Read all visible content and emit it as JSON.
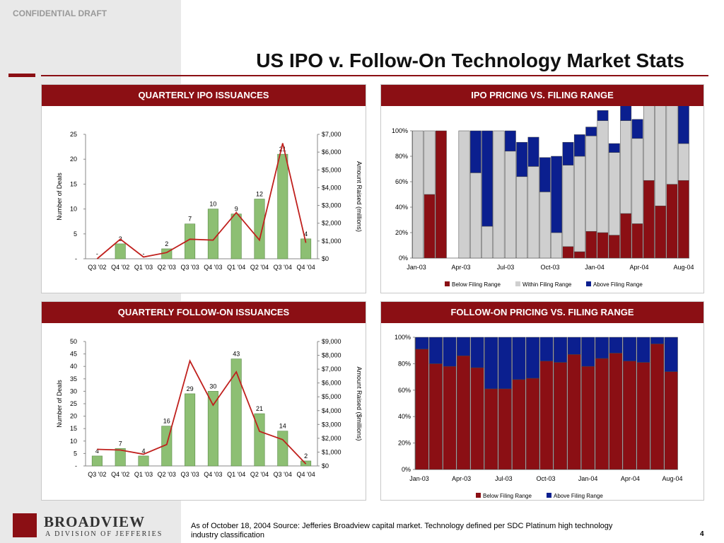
{
  "confidential": "CONFIDENTIAL DRAFT",
  "page_title": "US IPO v. Follow-On Technology Market Stats",
  "footer": {
    "note": "As of October 18, 2004 Source: Jefferies Broadview capital market. Technology defined per SDC Platinum high technology industry classification",
    "page_number": "4"
  },
  "logo": {
    "name": "BROADVIEW",
    "tagline": "A DIVISION OF JEFFERIES"
  },
  "colors": {
    "brand": "#8b0f14",
    "bar_green": "#8dbf73",
    "line_red": "#c0201d",
    "below": "#8b0f14",
    "within": "#cfcfcf",
    "above": "#0b1f8f"
  },
  "chart_data": [
    {
      "id": "ipo_issuances",
      "type": "bar",
      "title": "QUARTERLY IPO ISSUANCES",
      "categories": [
        "Q3 '02",
        "Q4 '02",
        "Q1 '03",
        "Q2 '03",
        "Q3 '03",
        "Q4 '03",
        "Q1 '04",
        "Q2 '04",
        "Q3 '04",
        "Q4 '04"
      ],
      "series": [
        {
          "values": [
            0,
            3,
            0,
            2,
            7,
            10,
            9,
            12,
            21,
            4
          ]
        },
        {
          "values": [
            0,
            1100,
            100,
            350,
            1100,
            1050,
            2600,
            1050,
            6500,
            900
          ]
        }
      ],
      "data_labels": [
        "-",
        "3",
        "-",
        "2",
        "7",
        "10",
        "9",
        "12",
        "21",
        "4"
      ],
      "ylabel": "Number of Deals",
      "ylabel2": "Amount Raised (millions)",
      "ylim": [
        0,
        25
      ],
      "y2lim": [
        0,
        7000
      ],
      "yticks": [
        "-",
        "5",
        "10",
        "15",
        "20",
        "25"
      ],
      "y2ticks": [
        "$0",
        "$1,000",
        "$2,000",
        "$3,000",
        "$4,000",
        "$5,000",
        "$6,000",
        "$7,000"
      ]
    },
    {
      "id": "ipo_pricing",
      "type": "bar",
      "title": "IPO PRICING VS. FILING RANGE",
      "x_ticks": [
        "Jan-03",
        "Apr-03",
        "Jul-03",
        "Oct-03",
        "Jan-04",
        "Apr-04",
        "Aug-04"
      ],
      "yticks": [
        "0%",
        "20%",
        "40%",
        "60%",
        "80%",
        "100%"
      ],
      "legend": [
        "Below Filing Range",
        "Within Filing Range",
        "Above Filing Range"
      ],
      "series": [
        {
          "name": "Below Filing Range",
          "values": [
            0,
            50,
            100,
            0,
            0,
            0,
            0,
            0,
            0,
            0,
            0,
            0,
            0,
            9,
            5,
            21,
            20,
            18,
            35,
            27,
            61,
            41,
            58,
            61
          ]
        },
        {
          "name": "Within Filing Range",
          "values": [
            100,
            50,
            0,
            0,
            100,
            67,
            25,
            100,
            84,
            64,
            72,
            52,
            20,
            64,
            75,
            75,
            88,
            65,
            73,
            67,
            79,
            79,
            79,
            29
          ]
        },
        {
          "name": "Above Filing Range",
          "values": [
            0,
            0,
            0,
            0,
            0,
            33,
            75,
            0,
            16,
            27,
            23,
            27,
            60,
            18,
            17,
            7,
            8,
            7,
            16,
            15,
            21,
            28,
            63,
            59
          ]
        }
      ],
      "present": [
        1,
        1,
        1,
        0,
        1,
        1,
        1,
        1,
        1,
        1,
        1,
        1,
        1,
        1,
        1,
        1,
        1,
        1,
        1,
        1,
        1,
        1,
        1,
        1
      ]
    },
    {
      "id": "followon_issuances",
      "type": "bar",
      "title": "QUARTERLY FOLLOW-ON ISSUANCES",
      "categories": [
        "Q3 '02",
        "Q4 '02",
        "Q1 '03",
        "Q2 '03",
        "Q3 '03",
        "Q4 '03",
        "Q1 '04",
        "Q2 '04",
        "Q3 '04",
        "Q4 '04"
      ],
      "series": [
        {
          "values": [
            4,
            7,
            4,
            16,
            29,
            30,
            43,
            21,
            14,
            2
          ]
        },
        {
          "values": [
            1200,
            1150,
            850,
            1550,
            7600,
            4400,
            6800,
            2500,
            1900,
            150
          ]
        }
      ],
      "data_labels": [
        "4",
        "7",
        "4",
        "16",
        "29",
        "30",
        "43",
        "21",
        "14",
        "2"
      ],
      "ylabel": "Number of Deals",
      "ylabel2": "Amount Raised ($millions)",
      "ylim": [
        0,
        50
      ],
      "y2lim": [
        0,
        9000
      ],
      "yticks": [
        "-",
        "5",
        "10",
        "15",
        "20",
        "25",
        "30",
        "35",
        "40",
        "45",
        "50"
      ],
      "y2ticks": [
        "$0",
        "$1,000",
        "$2,000",
        "$3,000",
        "$4,000",
        "$5,000",
        "$6,000",
        "$7,000",
        "$8,000",
        "$9,000"
      ]
    },
    {
      "id": "followon_pricing",
      "type": "bar",
      "title": "FOLLOW-ON PRICING VS. FILING RANGE",
      "x_ticks": [
        "Jan-03",
        "Apr-03",
        "Jul-03",
        "Oct-03",
        "Jan-04",
        "Apr-04",
        "Aug-04"
      ],
      "yticks": [
        "0%",
        "20%",
        "40%",
        "60%",
        "80%",
        "100%"
      ],
      "legend": [
        "Below Filing Range",
        "Above Filing Range"
      ],
      "series": [
        {
          "name": "Below Filing Range",
          "values": [
            91,
            80,
            78,
            86,
            77,
            61,
            61,
            68,
            69,
            82,
            81,
            87,
            78,
            84,
            88,
            82,
            81,
            95,
            74
          ]
        },
        {
          "name": "Above Filing Range",
          "values": [
            9,
            20,
            22,
            14,
            23,
            39,
            39,
            32,
            31,
            18,
            19,
            13,
            22,
            16,
            12,
            18,
            19,
            5,
            26
          ]
        }
      ]
    }
  ]
}
